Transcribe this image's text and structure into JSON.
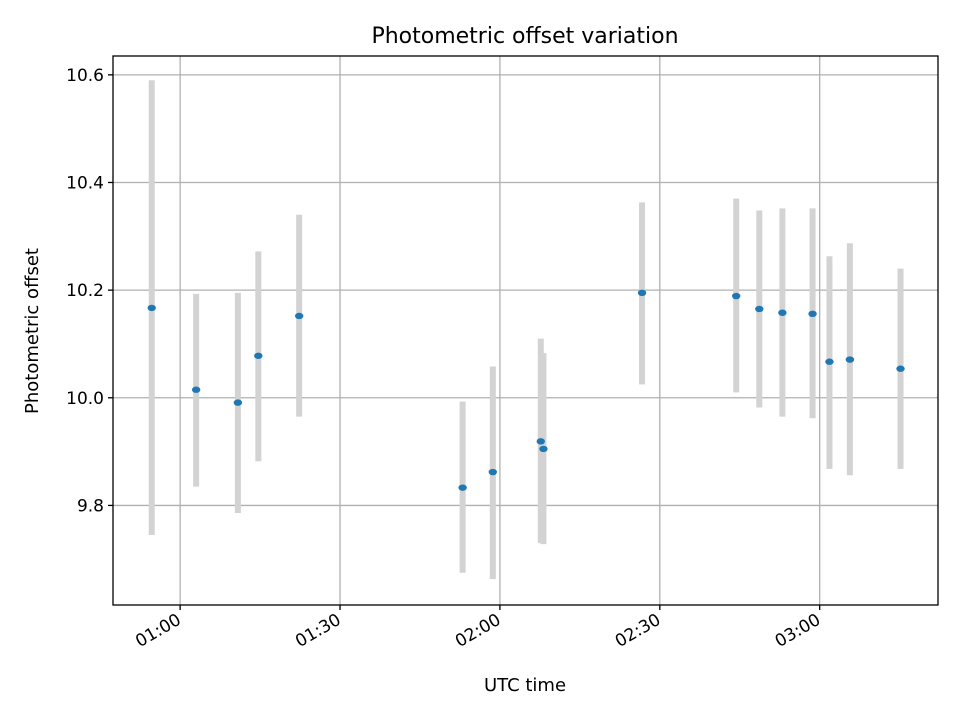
{
  "chart_data": {
    "type": "scatter",
    "title": "Photometric offset variation",
    "xlabel": "UTC time",
    "ylabel": "Photometric offset",
    "x_range": [
      "00:47:24",
      "03:22:12"
    ],
    "ylim": [
      9.615,
      10.635
    ],
    "x_ticks": [
      "01:00",
      "01:30",
      "02:00",
      "02:30",
      "03:00"
    ],
    "y_ticks": [
      9.8,
      10.0,
      10.2,
      10.4,
      10.6
    ],
    "y_tick_labels": [
      "9.8",
      "10.0",
      "10.2",
      "10.4",
      "10.6"
    ],
    "grid": true,
    "point_color": "#1f77b4",
    "errorbar_color": "#d3d3d3",
    "points": [
      {
        "t": "00:54:40",
        "y": 10.167,
        "lo": 9.745,
        "hi": 10.59
      },
      {
        "t": "01:03:00",
        "y": 10.015,
        "lo": 9.835,
        "hi": 10.193
      },
      {
        "t": "01:10:50",
        "y": 9.991,
        "lo": 9.786,
        "hi": 10.195
      },
      {
        "t": "01:14:40",
        "y": 10.078,
        "lo": 9.882,
        "hi": 10.272
      },
      {
        "t": "01:22:20",
        "y": 10.152,
        "lo": 9.965,
        "hi": 10.34
      },
      {
        "t": "01:53:00",
        "y": 9.833,
        "lo": 9.675,
        "hi": 9.993
      },
      {
        "t": "01:58:40",
        "y": 9.862,
        "lo": 9.663,
        "hi": 10.058
      },
      {
        "t": "02:07:40",
        "y": 9.919,
        "lo": 9.73,
        "hi": 10.11
      },
      {
        "t": "02:08:10",
        "y": 9.905,
        "lo": 9.728,
        "hi": 10.083
      },
      {
        "t": "02:26:40",
        "y": 10.195,
        "lo": 10.025,
        "hi": 10.363
      },
      {
        "t": "02:44:20",
        "y": 10.189,
        "lo": 10.01,
        "hi": 10.37
      },
      {
        "t": "02:48:40",
        "y": 10.165,
        "lo": 9.982,
        "hi": 10.348
      },
      {
        "t": "02:53:00",
        "y": 10.158,
        "lo": 9.965,
        "hi": 10.352
      },
      {
        "t": "02:58:40",
        "y": 10.156,
        "lo": 9.962,
        "hi": 10.352
      },
      {
        "t": "03:01:50",
        "y": 10.067,
        "lo": 9.868,
        "hi": 10.263
      },
      {
        "t": "03:05:40",
        "y": 10.071,
        "lo": 9.856,
        "hi": 10.287
      },
      {
        "t": "03:15:10",
        "y": 10.054,
        "lo": 9.868,
        "hi": 10.24
      }
    ]
  }
}
